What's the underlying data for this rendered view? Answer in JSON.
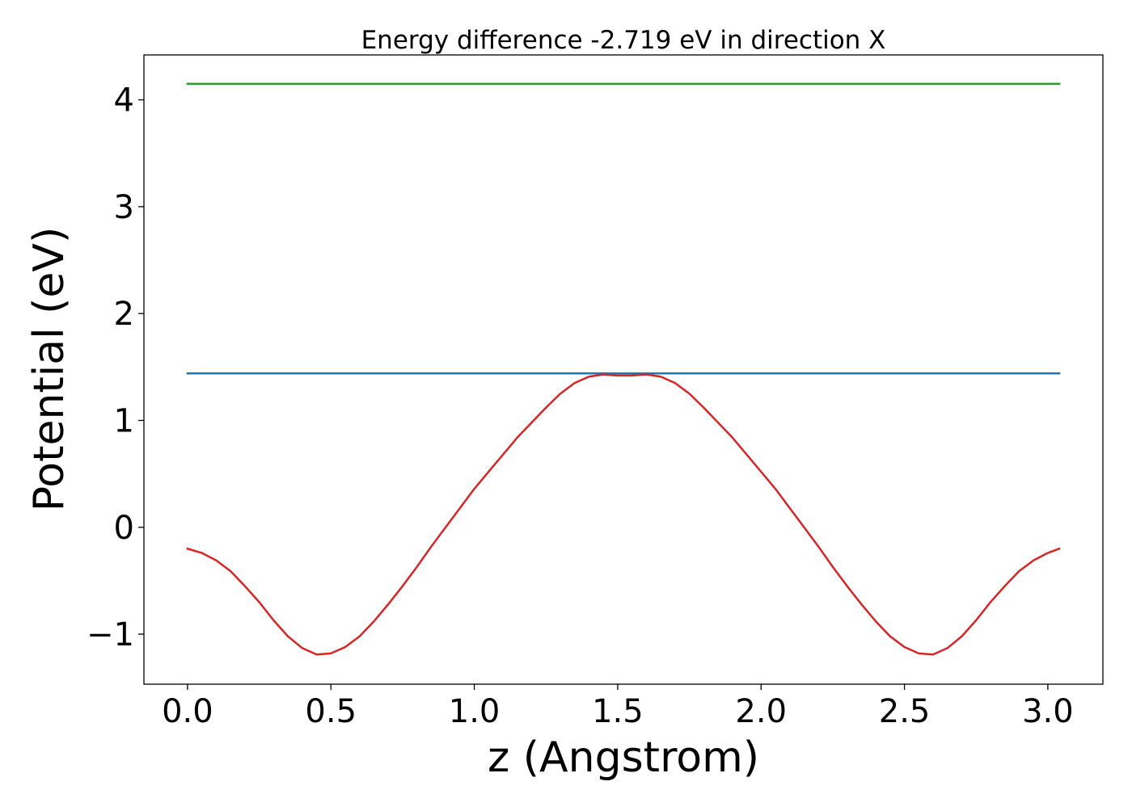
{
  "chart_data": {
    "type": "line",
    "title": "Energy difference -2.719 eV in direction X",
    "xlabel": "z (Angstrom)",
    "ylabel": "Potential (eV)",
    "xlim": [
      -0.152,
      3.192
    ],
    "ylim": [
      -1.468,
      4.42
    ],
    "xticks": [
      0.0,
      0.5,
      1.0,
      1.5,
      2.0,
      2.5,
      3.0
    ],
    "xtick_labels": [
      "0.0",
      "0.5",
      "1.0",
      "1.5",
      "2.0",
      "2.5",
      "3.0"
    ],
    "yticks": [
      -1,
      0,
      1,
      2,
      3,
      4
    ],
    "ytick_labels": [
      "−1",
      "0",
      "1",
      "2",
      "3",
      "4"
    ],
    "grid": false,
    "series": [
      {
        "color": "#2ca02c",
        "x": [
          0.0,
          3.04
        ],
        "y": [
          4.15,
          4.15
        ]
      },
      {
        "color": "#1f77b4",
        "x": [
          0.0,
          3.04
        ],
        "y": [
          1.44,
          1.44
        ]
      },
      {
        "color": "#d62728",
        "x": [
          0.0,
          0.05,
          0.1,
          0.15,
          0.2,
          0.25,
          0.3,
          0.35,
          0.4,
          0.45,
          0.5,
          0.55,
          0.6,
          0.65,
          0.7,
          0.75,
          0.8,
          0.85,
          0.9,
          0.95,
          1.0,
          1.05,
          1.1,
          1.15,
          1.2,
          1.25,
          1.3,
          1.35,
          1.4,
          1.45,
          1.5,
          1.55,
          1.6,
          1.65,
          1.7,
          1.75,
          1.8,
          1.85,
          1.9,
          1.95,
          2.0,
          2.05,
          2.1,
          2.15,
          2.2,
          2.25,
          2.3,
          2.35,
          2.4,
          2.45,
          2.5,
          2.55,
          2.6,
          2.65,
          2.7,
          2.75,
          2.8,
          2.85,
          2.9,
          2.95,
          3.0,
          3.04
        ],
        "y": [
          -0.2,
          -0.24,
          -0.31,
          -0.41,
          -0.55,
          -0.7,
          -0.87,
          -1.02,
          -1.13,
          -1.19,
          -1.18,
          -1.12,
          -1.02,
          -0.88,
          -0.72,
          -0.55,
          -0.37,
          -0.18,
          0.0,
          0.18,
          0.36,
          0.52,
          0.68,
          0.84,
          0.98,
          1.12,
          1.25,
          1.35,
          1.41,
          1.43,
          1.42,
          1.42,
          1.43,
          1.41,
          1.35,
          1.25,
          1.12,
          0.98,
          0.84,
          0.68,
          0.52,
          0.36,
          0.18,
          0.0,
          -0.18,
          -0.37,
          -0.55,
          -0.72,
          -0.88,
          -1.02,
          -1.12,
          -1.18,
          -1.19,
          -1.13,
          -1.02,
          -0.87,
          -0.7,
          -0.55,
          -0.41,
          -0.31,
          -0.24,
          -0.2
        ]
      }
    ]
  }
}
